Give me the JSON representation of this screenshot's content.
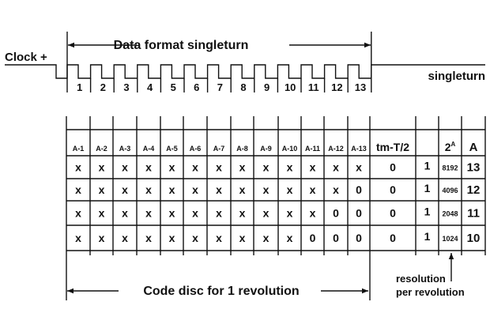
{
  "timing": {
    "clock_label": "Clock +",
    "format_label": "Data format singleturn",
    "end_label": "singleturn",
    "bit_numbers": [
      "1",
      "2",
      "3",
      "4",
      "5",
      "6",
      "7",
      "8",
      "9",
      "10",
      "11",
      "12",
      "13"
    ]
  },
  "table": {
    "headers": [
      "A-1",
      "A-2",
      "A-3",
      "A-4",
      "A-5",
      "A-6",
      "A-7",
      "A-8",
      "A-9",
      "A-10",
      "A-11",
      "A-12",
      "A-13",
      "tm-T/2",
      "",
      "2^A",
      "A"
    ],
    "power_header_base": "2",
    "power_header_exp": "A",
    "rows": [
      [
        "x",
        "x",
        "x",
        "x",
        "x",
        "x",
        "x",
        "x",
        "x",
        "x",
        "x",
        "x",
        "x",
        "0",
        "1",
        "8192",
        "13"
      ],
      [
        "x",
        "x",
        "x",
        "x",
        "x",
        "x",
        "x",
        "x",
        "x",
        "x",
        "x",
        "x",
        "0",
        "0",
        "1",
        "4096",
        "12"
      ],
      [
        "x",
        "x",
        "x",
        "x",
        "x",
        "x",
        "x",
        "x",
        "x",
        "x",
        "x",
        "0",
        "0",
        "0",
        "1",
        "2048",
        "11"
      ],
      [
        "x",
        "x",
        "x",
        "x",
        "x",
        "x",
        "x",
        "x",
        "x",
        "x",
        "0",
        "0",
        "0",
        "0",
        "1",
        "1024",
        "10"
      ]
    ]
  },
  "annotations": {
    "code_disc_label": "Code disc for 1 revolution",
    "resolution_line1": "resolution",
    "resolution_line2": "per revolution"
  }
}
